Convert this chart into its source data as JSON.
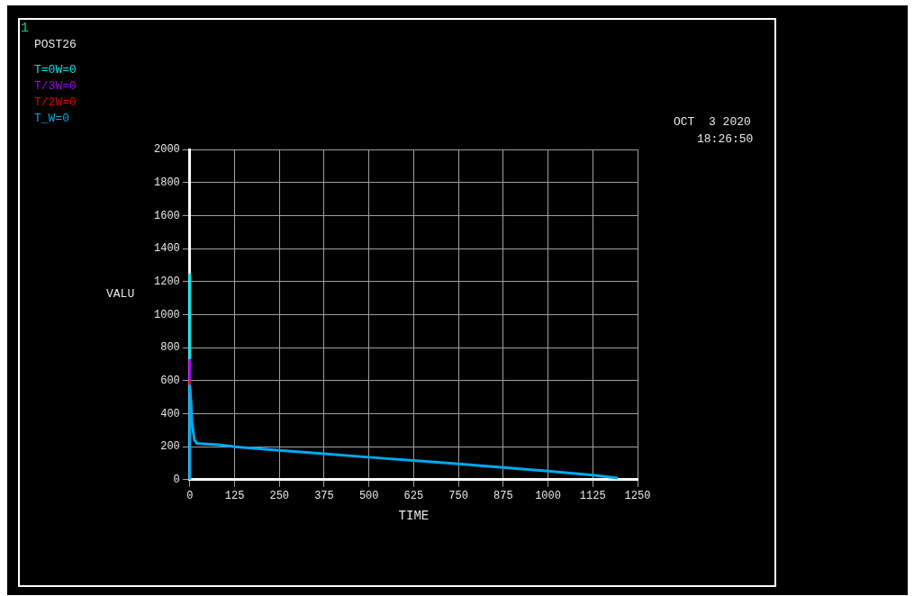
{
  "chart_data": {
    "type": "line",
    "xlabel": "TIME",
    "ylabel": "VALU",
    "annotations": [
      "1",
      "POST26",
      "OCT  3 2020",
      "18:26:50"
    ],
    "xlim": [
      0,
      1250
    ],
    "xticks": [
      0,
      125,
      250,
      375,
      500,
      625,
      750,
      875,
      1000,
      1125,
      1250
    ],
    "ylim": [
      0,
      2000
    ],
    "yticks": [
      0,
      200,
      400,
      600,
      800,
      1000,
      1200,
      1400,
      1600,
      1800,
      2000
    ],
    "grid": true,
    "legend": "top left",
    "series": [
      {
        "name": "T=0W=0",
        "color": "#00e8e8",
        "x": [
          0,
          0
        ],
        "values": [
          730,
          1250
        ]
      },
      {
        "name": "T/3W=0",
        "color": "#a000f0",
        "x": [
          0,
          0
        ],
        "values": [
          600,
          730
        ]
      },
      {
        "name": "T/2W=0",
        "color": "#e00000",
        "x": [
          0,
          0
        ],
        "values": [
          570,
          600
        ]
      },
      {
        "name": "T_W=0",
        "color": "#00a8f0",
        "x": [
          0,
          0,
          3,
          6,
          9,
          13,
          20,
          80,
          125,
          250,
          375,
          500,
          625,
          750,
          875,
          1000,
          1125,
          1195
        ],
        "values": [
          0,
          570,
          480,
          350,
          300,
          240,
          220,
          212,
          200,
          178,
          157,
          136,
          116,
          96,
          74,
          52,
          28,
          10
        ]
      }
    ]
  }
}
